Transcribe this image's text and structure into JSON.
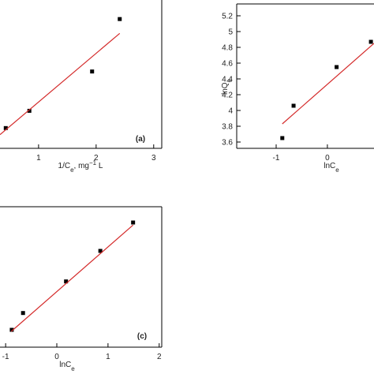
{
  "chart_data": [
    {
      "type": "scatter",
      "annotation": "(a)",
      "xlabel": [
        {
          "text": "1/C"
        },
        {
          "text": "e",
          "shift": "sub"
        },
        {
          "text": ", mg"
        },
        {
          "text": "−1",
          "shift": "super"
        },
        {
          "text": " L"
        }
      ],
      "xlim": [
        0.33,
        3.14
      ],
      "ylim": [
        0.0043,
        0.0292
      ],
      "xticks": [
        1,
        2,
        3
      ],
      "series": [
        {
          "mode": "markers",
          "color": "#000000",
          "x": [
            0.43,
            0.84,
            1.93,
            2.41
          ],
          "values": [
            0.0077,
            0.0106,
            0.0172,
            0.026
          ]
        },
        {
          "mode": "line",
          "color": "#d42a2a",
          "x": [
            0.33,
            2.41
          ],
          "values": [
            0.0066,
            0.0236
          ]
        }
      ]
    },
    {
      "type": "scatter",
      "xlabel": [
        {
          "text": "lnC"
        },
        {
          "text": "e",
          "shift": "sub"
        }
      ],
      "ylabel": [
        {
          "text": "lnQ"
        },
        {
          "text": "e",
          "shift": "sub"
        }
      ],
      "xlim": [
        -1.77,
        0.91
      ],
      "ylim": [
        3.52,
        5.35
      ],
      "xticks": [
        -1,
        0
      ],
      "yticks": [
        3.6,
        3.8,
        4.0,
        4.2,
        4.4,
        4.6,
        4.8,
        5.0,
        5.2
      ],
      "series": [
        {
          "mode": "markers",
          "color": "#000000",
          "x": [
            -0.88,
            -0.66,
            0.18,
            0.85
          ],
          "values": [
            3.65,
            4.06,
            4.55,
            4.87
          ]
        },
        {
          "mode": "line",
          "color": "#d42a2a",
          "x": [
            -0.88,
            0.91
          ],
          "values": [
            3.83,
            4.85
          ]
        }
      ]
    },
    {
      "type": "scatter",
      "annotation": "(c)",
      "xlabel": [
        {
          "text": "lnC"
        },
        {
          "text": "e",
          "shift": "sub"
        }
      ],
      "xlim": [
        -1.11,
        2.05
      ],
      "ylim": [
        18.4,
        181.2
      ],
      "xticks": [
        -1,
        0,
        1,
        2
      ],
      "series": [
        {
          "mode": "markers",
          "color": "#000000",
          "x": [
            -0.88,
            -0.66,
            0.18,
            0.85,
            1.49
          ],
          "values": [
            38.5,
            58,
            94.6,
            130,
            162.9
          ]
        },
        {
          "mode": "line",
          "color": "#d42a2a",
          "x": [
            -0.89,
            1.49
          ],
          "values": [
            36.7,
            160.0
          ]
        }
      ]
    }
  ]
}
